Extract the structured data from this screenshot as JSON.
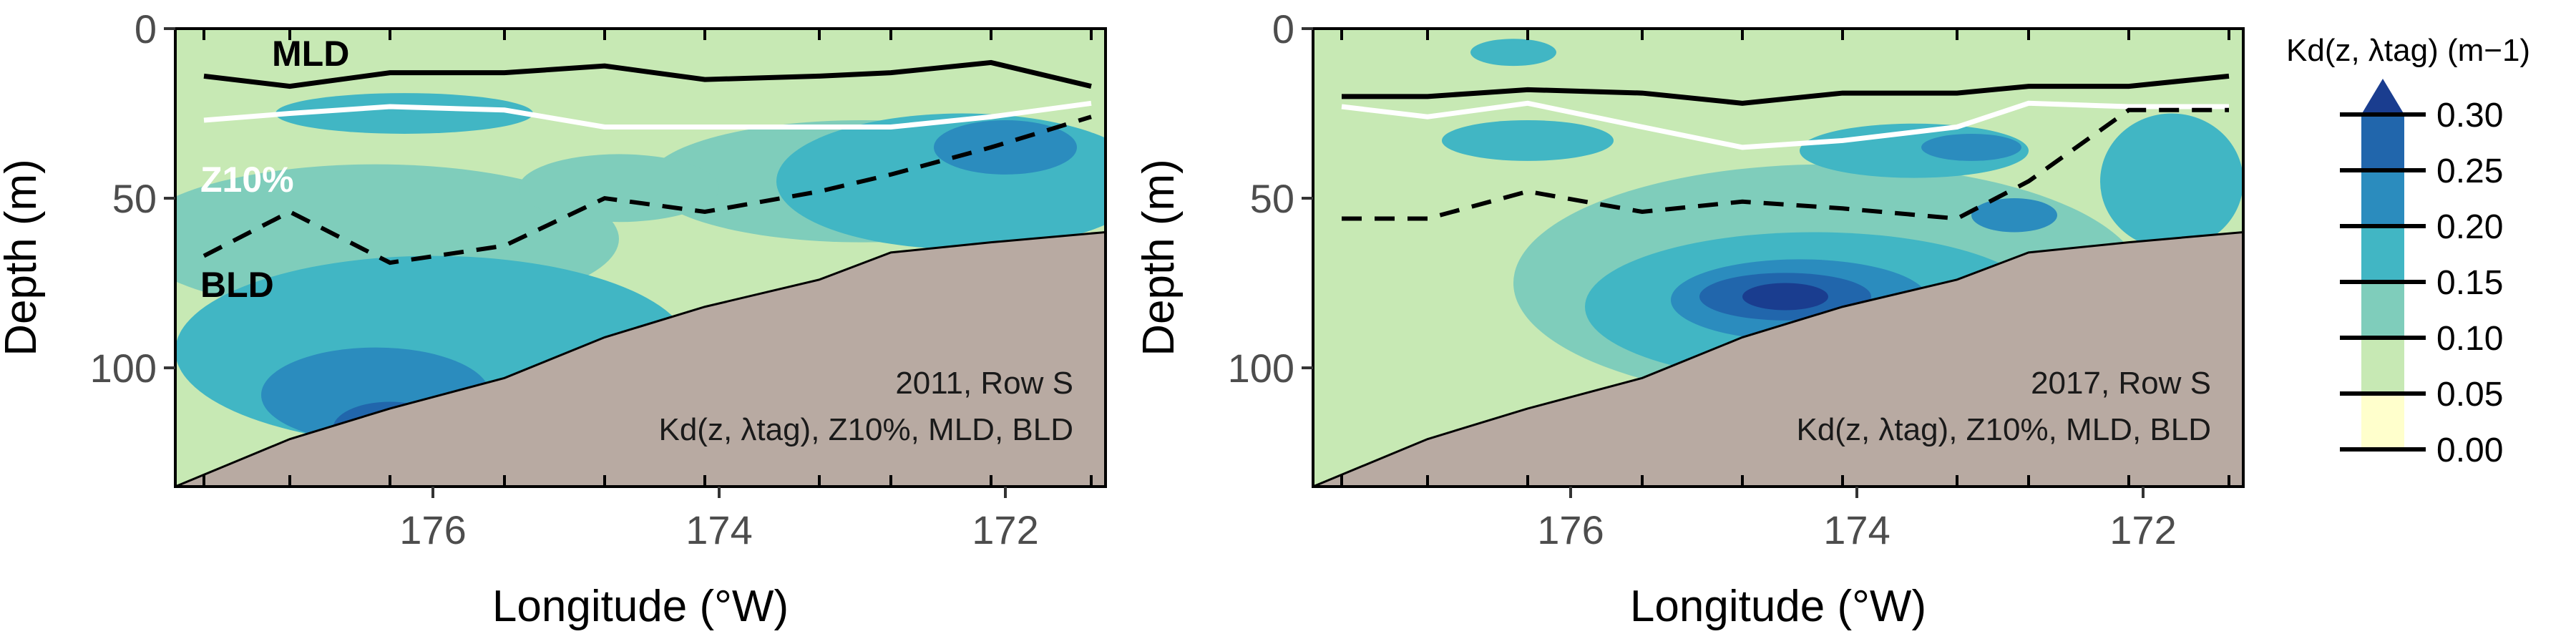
{
  "chart_data": [
    {
      "type": "filled-contour",
      "panel_label_line1": "2011, Row S",
      "panel_label_line2": "Kd(z, λtag), Z10%, MLD, BLD",
      "xlabel": "Longitude (°W)",
      "ylabel": "Depth (m)",
      "xlim": [
        177.8,
        171.3
      ],
      "ylim": [
        135,
        0
      ],
      "xticks": [
        "176",
        "174",
        "172"
      ],
      "yticks": [
        "0",
        "50",
        "100"
      ],
      "station_ticks": [
        177.6,
        177.0,
        176.3,
        175.5,
        174.8,
        174.1,
        173.3,
        172.8,
        172.1,
        171.4
      ],
      "lines": {
        "MLD": {
          "label": "MLD",
          "lon": [
            177.6,
            177.0,
            176.3,
            175.5,
            174.8,
            174.1,
            173.3,
            172.8,
            172.1,
            171.4
          ],
          "depth": [
            14,
            17,
            13,
            13,
            11,
            15,
            14,
            13,
            10,
            17
          ]
        },
        "Z10": {
          "label": "Z10%",
          "lon": [
            177.6,
            177.0,
            176.3,
            175.5,
            174.8,
            174.1,
            173.3,
            172.8,
            172.1,
            171.4
          ],
          "depth": [
            27,
            25,
            23,
            24,
            29,
            29,
            29,
            29,
            26,
            22
          ]
        },
        "BLD": {
          "label": "BLD",
          "lon": [
            177.6,
            177.0,
            176.3,
            175.5,
            174.8,
            174.1,
            173.3,
            172.8,
            172.1,
            171.4
          ],
          "depth": [
            67,
            54,
            69,
            64,
            50,
            54,
            48,
            43,
            35,
            26
          ]
        }
      },
      "bathymetry": {
        "lon": [
          177.8,
          177.0,
          176.3,
          175.5,
          174.8,
          174.1,
          173.3,
          172.8,
          172.1,
          171.3
        ],
        "depth": [
          135,
          121,
          112,
          103,
          91,
          82,
          74,
          66,
          63,
          60
        ]
      },
      "kd_blobs": [
        {
          "level": 0.1,
          "lon": 176.4,
          "depth": 62,
          "rlon": 1.7,
          "rdepth": 22
        },
        {
          "level": 0.15,
          "lon": 176.0,
          "depth": 95,
          "rlon": 1.8,
          "rdepth": 28
        },
        {
          "level": 0.2,
          "lon": 176.4,
          "depth": 108,
          "rlon": 0.8,
          "rdepth": 14
        },
        {
          "level": 0.25,
          "lon": 176.3,
          "depth": 118,
          "rlon": 0.4,
          "rdepth": 8
        },
        {
          "level": 0.1,
          "lon": 173.0,
          "depth": 45,
          "rlon": 1.5,
          "rdepth": 18
        },
        {
          "level": 0.15,
          "lon": 172.3,
          "depth": 45,
          "rlon": 1.3,
          "rdepth": 20
        },
        {
          "level": 0.2,
          "lon": 172.0,
          "depth": 35,
          "rlon": 0.5,
          "rdepth": 8
        },
        {
          "level": 0.15,
          "lon": 176.2,
          "depth": 25,
          "rlon": 0.9,
          "rdepth": 6
        },
        {
          "level": 0.1,
          "lon": 174.7,
          "depth": 47,
          "rlon": 0.7,
          "rdepth": 10
        }
      ]
    },
    {
      "type": "filled-contour",
      "panel_label_line1": "2017, Row S",
      "panel_label_line2": "Kd(z, λtag), Z10%, MLD, BLD",
      "xlabel": "Longitude (°W)",
      "ylabel": "Depth (m)",
      "xlim": [
        177.8,
        171.3
      ],
      "ylim": [
        135,
        0
      ],
      "xticks": [
        "176",
        "174",
        "172"
      ],
      "yticks": [
        "0",
        "50",
        "100"
      ],
      "station_ticks": [
        177.6,
        177.0,
        176.3,
        175.5,
        174.8,
        174.1,
        173.3,
        172.8,
        172.1,
        171.4
      ],
      "lines": {
        "MLD": {
          "label": "",
          "lon": [
            177.6,
            177.0,
            176.3,
            175.5,
            174.8,
            174.1,
            173.3,
            172.8,
            172.1,
            171.4
          ],
          "depth": [
            20,
            20,
            18,
            19,
            22,
            19,
            19,
            17,
            17,
            14
          ]
        },
        "Z10": {
          "label": "",
          "lon": [
            177.6,
            177.0,
            176.3,
            175.5,
            174.8,
            174.1,
            173.3,
            172.8,
            172.1,
            171.4
          ],
          "depth": [
            23,
            26,
            22,
            29,
            35,
            33,
            29,
            22,
            23,
            23
          ]
        },
        "BLD": {
          "label": "",
          "lon": [
            177.6,
            177.0,
            176.3,
            175.5,
            174.8,
            174.1,
            173.3,
            172.8,
            172.1,
            171.4
          ],
          "depth": [
            56,
            56,
            48,
            54,
            51,
            53,
            56,
            45,
            24,
            24
          ]
        }
      },
      "bathymetry": {
        "lon": [
          177.8,
          177.0,
          176.3,
          175.5,
          174.8,
          174.1,
          173.3,
          172.8,
          172.1,
          171.3
        ],
        "depth": [
          135,
          121,
          112,
          103,
          91,
          82,
          74,
          66,
          63,
          60
        ]
      },
      "kd_blobs": [
        {
          "level": 0.1,
          "lon": 174.2,
          "depth": 75,
          "rlon": 2.2,
          "rdepth": 35
        },
        {
          "level": 0.15,
          "lon": 174.3,
          "depth": 82,
          "rlon": 1.6,
          "rdepth": 22
        },
        {
          "level": 0.2,
          "lon": 174.4,
          "depth": 80,
          "rlon": 0.9,
          "rdepth": 12
        },
        {
          "level": 0.25,
          "lon": 174.5,
          "depth": 79,
          "rlon": 0.6,
          "rdepth": 7
        },
        {
          "level": 0.3,
          "lon": 174.5,
          "depth": 79,
          "rlon": 0.3,
          "rdepth": 4
        },
        {
          "level": 0.15,
          "lon": 173.6,
          "depth": 36,
          "rlon": 0.8,
          "rdepth": 8
        },
        {
          "level": 0.2,
          "lon": 173.2,
          "depth": 35,
          "rlon": 0.35,
          "rdepth": 4
        },
        {
          "level": 0.2,
          "lon": 172.9,
          "depth": 55,
          "rlon": 0.3,
          "rdepth": 5
        },
        {
          "level": 0.15,
          "lon": 171.8,
          "depth": 45,
          "rlon": 0.5,
          "rdepth": 20
        },
        {
          "level": 0.15,
          "lon": 176.3,
          "depth": 33,
          "rlon": 0.6,
          "rdepth": 6
        },
        {
          "level": 0.15,
          "lon": 176.4,
          "depth": 7,
          "rlon": 0.3,
          "rdepth": 4
        }
      ]
    }
  ],
  "legend": {
    "title": "Kd(z, λtag) (m−1)",
    "levels": [
      "0.30",
      "0.25",
      "0.20",
      "0.15",
      "0.10",
      "0.05",
      "0.00"
    ],
    "colors": [
      "#1a3d8f",
      "#2166ac",
      "#2b8cbe",
      "#41b6c4",
      "#7fcdbb",
      "#c7e9b4",
      "#ffffcc"
    ],
    "bathymetry_color": "#b8aaa2"
  }
}
